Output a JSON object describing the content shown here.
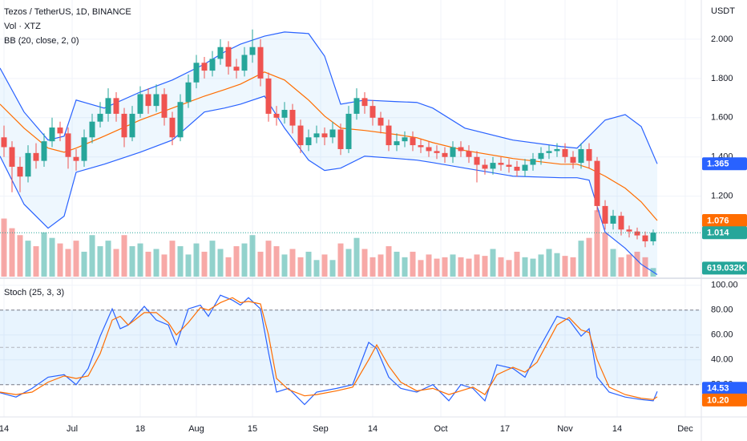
{
  "chart_data": {
    "type": "candlestick",
    "title": "Tezos / TetherUS, 1D, BINANCE",
    "volume_title": "Vol · XTZ",
    "bb_title": "BB (20, close, 2, 0)",
    "currency": "USDT",
    "up_color": "#26a69a",
    "down_color": "#ef5350",
    "grid": true,
    "xlim": [
      -1,
      174
    ],
    "xticks": [
      {
        "value": 0,
        "label": "14"
      },
      {
        "value": 17,
        "label": "Jul"
      },
      {
        "value": 34,
        "label": "18"
      },
      {
        "value": 48,
        "label": "Aug"
      },
      {
        "value": 62,
        "label": "15"
      },
      {
        "value": 79,
        "label": "Sep"
      },
      {
        "value": 92,
        "label": "14"
      },
      {
        "value": 109,
        "label": "Oct"
      },
      {
        "value": 125,
        "label": "17"
      },
      {
        "value": 140,
        "label": "Nov"
      },
      {
        "value": 153,
        "label": "14"
      },
      {
        "value": 170,
        "label": "Dec"
      }
    ],
    "ylim": [
      0.79,
      2.2
    ],
    "yticks": [
      {
        "value": 2,
        "label": "2.000"
      },
      {
        "value": 1.8,
        "label": "1.800"
      },
      {
        "value": 1.6,
        "label": "1.600"
      },
      {
        "value": 1.4,
        "label": "1.400"
      },
      {
        "value": 1.2,
        "label": "1.200"
      }
    ],
    "x": [
      0,
      2,
      4,
      6,
      8,
      10,
      12,
      14,
      16,
      18,
      20,
      22,
      24,
      26,
      28,
      30,
      32,
      34,
      36,
      38,
      40,
      42,
      44,
      46,
      48,
      50,
      52,
      54,
      56,
      58,
      60,
      62,
      64,
      66,
      68,
      70,
      72,
      74,
      76,
      78,
      80,
      82,
      84,
      86,
      88,
      90,
      92,
      94,
      96,
      98,
      100,
      102,
      104,
      106,
      108,
      110,
      112,
      114,
      116,
      118,
      120,
      122,
      124,
      126,
      128,
      130,
      132,
      134,
      136,
      138,
      140,
      142,
      144,
      146,
      148,
      150,
      152,
      154,
      156,
      158,
      160,
      162
    ],
    "open": [
      1.5,
      1.45,
      1.35,
      1.3,
      1.42,
      1.38,
      1.48,
      1.55,
      1.52,
      1.4,
      1.38,
      1.5,
      1.58,
      1.62,
      1.7,
      1.62,
      1.5,
      1.62,
      1.72,
      1.66,
      1.72,
      1.6,
      1.5,
      1.68,
      1.78,
      1.88,
      1.84,
      1.9,
      1.96,
      1.86,
      1.84,
      1.92,
      1.96,
      1.8,
      1.62,
      1.6,
      1.64,
      1.56,
      1.46,
      1.5,
      1.52,
      1.5,
      1.54,
      1.44,
      1.62,
      1.7,
      1.66,
      1.6,
      1.56,
      1.46,
      1.48,
      1.5,
      1.46,
      1.45,
      1.43,
      1.42,
      1.4,
      1.45,
      1.43,
      1.4,
      1.36,
      1.34,
      1.37,
      1.36,
      1.35,
      1.33,
      1.36,
      1.39,
      1.42,
      1.43,
      1.44,
      1.4,
      1.37,
      1.44,
      1.38,
      1.15,
      1.06,
      1.1,
      1.03,
      1.02,
      1.0,
      0.97
    ],
    "high": [
      1.56,
      1.48,
      1.4,
      1.46,
      1.47,
      1.52,
      1.6,
      1.58,
      1.55,
      1.44,
      1.54,
      1.62,
      1.68,
      1.75,
      1.73,
      1.65,
      1.66,
      1.76,
      1.75,
      1.77,
      1.75,
      1.63,
      1.72,
      1.82,
      1.92,
      1.91,
      1.94,
      2.0,
      1.99,
      1.9,
      1.96,
      2.05,
      2.0,
      1.83,
      1.66,
      1.68,
      1.67,
      1.59,
      1.54,
      1.56,
      1.55,
      1.58,
      1.57,
      1.66,
      1.75,
      1.73,
      1.69,
      1.63,
      1.59,
      1.52,
      1.53,
      1.53,
      1.49,
      1.48,
      1.46,
      1.45,
      1.48,
      1.48,
      1.46,
      1.43,
      1.39,
      1.4,
      1.4,
      1.39,
      1.38,
      1.39,
      1.42,
      1.45,
      1.46,
      1.47,
      1.47,
      1.43,
      1.47,
      1.47,
      1.4,
      1.18,
      1.13,
      1.12,
      1.05,
      1.04,
      1.02,
      1.03
    ],
    "low": [
      1.4,
      1.22,
      1.22,
      1.27,
      1.34,
      1.35,
      1.45,
      1.48,
      1.34,
      1.33,
      1.35,
      1.47,
      1.55,
      1.58,
      1.58,
      1.45,
      1.48,
      1.6,
      1.62,
      1.63,
      1.56,
      1.46,
      1.48,
      1.65,
      1.75,
      1.8,
      1.81,
      1.87,
      1.82,
      1.8,
      1.81,
      1.88,
      1.76,
      1.58,
      1.56,
      1.57,
      1.52,
      1.42,
      1.43,
      1.47,
      1.46,
      1.47,
      1.41,
      1.42,
      1.59,
      1.62,
      1.56,
      1.52,
      1.43,
      1.43,
      1.45,
      1.43,
      1.42,
      1.4,
      1.39,
      1.37,
      1.37,
      1.4,
      1.37,
      1.27,
      1.31,
      1.31,
      1.33,
      1.32,
      1.3,
      1.3,
      1.33,
      1.36,
      1.39,
      1.4,
      1.37,
      1.34,
      1.34,
      1.34,
      1.12,
      1.03,
      1.03,
      1.0,
      0.99,
      0.98,
      0.94,
      0.95
    ],
    "close": [
      1.45,
      1.35,
      1.3,
      1.42,
      1.38,
      1.48,
      1.55,
      1.52,
      1.4,
      1.38,
      1.5,
      1.58,
      1.62,
      1.7,
      1.62,
      1.5,
      1.62,
      1.72,
      1.66,
      1.72,
      1.6,
      1.5,
      1.68,
      1.78,
      1.88,
      1.84,
      1.9,
      1.96,
      1.86,
      1.84,
      1.92,
      1.96,
      1.8,
      1.62,
      1.6,
      1.64,
      1.56,
      1.46,
      1.5,
      1.52,
      1.5,
      1.54,
      1.44,
      1.62,
      1.7,
      1.66,
      1.6,
      1.56,
      1.46,
      1.48,
      1.5,
      1.46,
      1.45,
      1.43,
      1.42,
      1.4,
      1.45,
      1.43,
      1.4,
      1.36,
      1.34,
      1.37,
      1.36,
      1.35,
      1.33,
      1.36,
      1.39,
      1.42,
      1.43,
      1.44,
      1.4,
      1.37,
      1.44,
      1.38,
      1.15,
      1.06,
      1.1,
      1.03,
      1.02,
      1.0,
      0.97,
      1.014
    ],
    "volume": [
      4200,
      3500,
      3000,
      2600,
      2200,
      3200,
      2800,
      2400,
      2000,
      2600,
      1800,
      3000,
      2200,
      2600,
      2000,
      3000,
      2200,
      2400,
      1800,
      2000,
      1600,
      2600,
      2200,
      1600,
      2400,
      1800,
      2600,
      2000,
      1400,
      2200,
      2400,
      3000,
      1800,
      2600,
      2200,
      1600,
      2000,
      1400,
      1800,
      1200,
      1600,
      1200,
      2400,
      2000,
      2800,
      2000,
      1400,
      1600,
      2200,
      1800,
      1400,
      1800,
      1200,
      1600,
      1300,
      1400,
      1600,
      1400,
      1300,
      1600,
      1500,
      2000,
      1400,
      1200,
      1800,
      1400,
      1300,
      1600,
      2000,
      1700,
      1500,
      1400,
      2600,
      2800,
      4800,
      3200,
      2000,
      1400,
      1600,
      1800,
      1400,
      619.032
    ],
    "vlim": [
      0,
      20000
    ],
    "bb": {
      "x": [
        -1,
        5,
        11,
        15,
        18,
        25,
        34,
        42,
        50,
        55,
        59,
        65,
        70,
        76,
        80,
        84,
        90,
        98,
        103,
        107,
        115,
        127,
        139,
        143,
        146,
        150,
        155,
        159,
        163
      ],
      "upper": [
        1.853,
        1.629,
        1.486,
        1.506,
        1.69,
        1.649,
        1.731,
        1.792,
        1.873,
        1.935,
        1.975,
        2.016,
        2.037,
        2.029,
        1.914,
        1.669,
        1.69,
        1.682,
        1.678,
        1.649,
        1.547,
        1.486,
        1.453,
        1.445,
        1.506,
        1.588,
        1.616,
        1.555,
        1.365
      ],
      "basis": [
        1.669,
        1.547,
        1.445,
        1.424,
        1.445,
        1.506,
        1.588,
        1.649,
        1.71,
        1.743,
        1.771,
        1.833,
        1.792,
        1.69,
        1.608,
        1.547,
        1.535,
        1.514,
        1.498,
        1.473,
        1.433,
        1.392,
        1.363,
        1.363,
        1.343,
        1.302,
        1.241,
        1.171,
        1.076
      ],
      "lower": [
        1.404,
        1.159,
        1.037,
        1.098,
        1.322,
        1.363,
        1.424,
        1.486,
        1.629,
        1.649,
        1.669,
        1.71,
        1.547,
        1.384,
        1.331,
        1.343,
        1.404,
        1.392,
        1.384,
        1.371,
        1.343,
        1.302,
        1.294,
        1.294,
        1.282,
        1.016,
        0.935,
        0.853,
        0.8
      ],
      "band_color": "#2962ff",
      "basis_color": "#ff6d00",
      "fill": "rgba(33,150,243,0.08)"
    },
    "badges": [
      {
        "value": 1.365,
        "label": "1.365",
        "color": "#2962ff"
      },
      {
        "value": 1.076,
        "label": "1.076",
        "color": "#ff6d00"
      },
      {
        "value": 1.014,
        "label": "1.014",
        "color": "#26a69a"
      }
    ],
    "volume_badge": {
      "value": 619.032,
      "label": "619.032K",
      "color": "#26a69a"
    },
    "stoch": {
      "type": "line",
      "title": "Stoch (25, 3, 3)",
      "ylim": [
        -6,
        105
      ],
      "yticks": [
        {
          "value": 100,
          "label": "100.00"
        },
        {
          "value": 80,
          "label": "80.00"
        },
        {
          "value": 60,
          "label": "60.00"
        },
        {
          "value": 40,
          "label": "40.00"
        },
        {
          "value": 20,
          "label": "20.00"
        }
      ],
      "band": [
        20,
        80
      ],
      "mid": 50,
      "band_fill": "rgba(33,150,243,0.1)",
      "x": [
        -1,
        3,
        7,
        11,
        15,
        18,
        21,
        24,
        27,
        29,
        31,
        35,
        38,
        41,
        43,
        46,
        49,
        51,
        54,
        57,
        59,
        61,
        64,
        66,
        68,
        71,
        75,
        78,
        83,
        87,
        91,
        93,
        96,
        99,
        103,
        107,
        111,
        114,
        117,
        120,
        123,
        127,
        130,
        133,
        138,
        141,
        144,
        146,
        148,
        151,
        155,
        159,
        162,
        163
      ],
      "series": [
        {
          "color": "#2962ff",
          "values": [
            13.5,
            10,
            17,
            26,
            28,
            20,
            33,
            59,
            81,
            65,
            68,
            83,
            72,
            68,
            52,
            81,
            84,
            75,
            92,
            88,
            84,
            90,
            81,
            46,
            14,
            17,
            4,
            14,
            17,
            20,
            54,
            49,
            26,
            17,
            14,
            20,
            7,
            20,
            17,
            7,
            36,
            33,
            26,
            46,
            75,
            72,
            59,
            65,
            26,
            14,
            10,
            8,
            7,
            14.53
          ]
        },
        {
          "color": "#ff6d00",
          "values": [
            14,
            12,
            14,
            22,
            27,
            25,
            27,
            45,
            72,
            75,
            68,
            78,
            78,
            70,
            60,
            70,
            82,
            80,
            86,
            90,
            86,
            87,
            85,
            60,
            25,
            16,
            11,
            12,
            15,
            18,
            40,
            52,
            35,
            22,
            15,
            17,
            12,
            15,
            18,
            12,
            28,
            34,
            30,
            38,
            68,
            74,
            64,
            62,
            40,
            18,
            12,
            9,
            8,
            10.2
          ]
        }
      ],
      "badges": [
        {
          "value": 14.53,
          "label": "14.53",
          "color": "#2962ff"
        },
        {
          "value": 10.2,
          "label": "10.20",
          "color": "#ff6d00"
        }
      ]
    }
  }
}
